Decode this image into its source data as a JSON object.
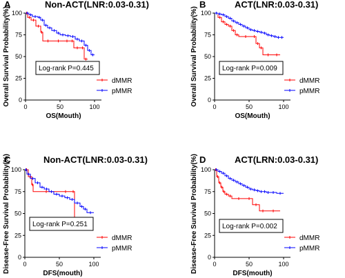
{
  "chart_data": [
    {
      "type": "line",
      "panel": "A",
      "title": "Non-ACT(LNR:0.03-0.31)",
      "xlabel": "OS(Mouth)",
      "ylabel": "Overall Survival Probability(%)",
      "xlim": [
        0,
        110
      ],
      "ylim": [
        0,
        100
      ],
      "xticks": [
        0,
        50,
        100
      ],
      "yticks": [
        0,
        25,
        50,
        75,
        100
      ],
      "annotation": "Log-rank P=0.445",
      "legend_position": "bottom-right",
      "series": [
        {
          "name": "dMMR",
          "color": "#ff0000",
          "x": [
            0,
            3,
            8,
            15,
            22,
            25,
            40,
            55,
            65,
            70,
            80,
            85,
            90
          ],
          "y": [
            100,
            95,
            92,
            85,
            78,
            68,
            68,
            68,
            68,
            60,
            60,
            47,
            47
          ]
        },
        {
          "name": "pMMR",
          "color": "#0000ff",
          "x": [
            0,
            5,
            10,
            18,
            22,
            27,
            32,
            38,
            45,
            50,
            58,
            65,
            72,
            78,
            85,
            90,
            95,
            100
          ],
          "y": [
            100,
            98,
            96,
            95,
            92,
            86,
            83,
            80,
            77,
            75,
            74,
            73,
            70,
            68,
            63,
            57,
            52,
            52
          ]
        }
      ]
    },
    {
      "type": "line",
      "panel": "B",
      "title": "ACT(LNR:0.03-0.31)",
      "xlabel": "OS(Mouth)",
      "ylabel": "Overall Survival Probability(%)",
      "xlim": [
        0,
        110
      ],
      "ylim": [
        0,
        100
      ],
      "xticks": [
        0,
        50,
        100
      ],
      "yticks": [
        0,
        25,
        50,
        75,
        100
      ],
      "annotation": "Log-rank P=0.009",
      "legend_position": "bottom-right",
      "series": [
        {
          "name": "dMMR",
          "color": "#ff0000",
          "x": [
            0,
            5,
            10,
            15,
            20,
            25,
            30,
            35,
            55,
            60,
            65,
            70,
            85,
            95
          ],
          "y": [
            100,
            95,
            90,
            87,
            85,
            80,
            75,
            73,
            73,
            65,
            60,
            52,
            52,
            52
          ]
        },
        {
          "name": "pMMR",
          "color": "#0000ff",
          "x": [
            0,
            5,
            10,
            15,
            20,
            25,
            30,
            35,
            40,
            45,
            50,
            55,
            60,
            65,
            70,
            75,
            80,
            85,
            90,
            95,
            100
          ],
          "y": [
            100,
            99,
            98,
            96,
            94,
            91,
            89,
            87,
            85,
            83,
            81,
            80,
            79,
            78,
            77,
            75,
            74,
            73,
            72,
            72,
            72
          ]
        }
      ]
    },
    {
      "type": "line",
      "panel": "C",
      "title": "Non-ACT(LNR:0.03-0.31)",
      "xlabel": "DFS(mouth)",
      "ylabel": "Disease-Free Survival Probability(%)",
      "xlim": [
        0,
        110
      ],
      "ylim": [
        0,
        100
      ],
      "xticks": [
        0,
        50,
        100
      ],
      "yticks": [
        0,
        25,
        50,
        75,
        100
      ],
      "annotation": "Log-rank P=0.251",
      "legend_position": "bottom-right",
      "series": [
        {
          "name": "dMMR",
          "color": "#ff0000",
          "x": [
            0,
            5,
            10,
            12,
            50,
            68,
            72,
            78
          ],
          "y": [
            100,
            92,
            83,
            75,
            75,
            75,
            37,
            37
          ]
        },
        {
          "name": "pMMR",
          "color": "#0000ff",
          "x": [
            0,
            3,
            8,
            15,
            22,
            28,
            35,
            42,
            50,
            58,
            65,
            72,
            80,
            85,
            90,
            100
          ],
          "y": [
            100,
            95,
            90,
            85,
            80,
            78,
            75,
            72,
            70,
            68,
            66,
            62,
            58,
            55,
            51,
            51
          ]
        }
      ]
    },
    {
      "type": "line",
      "panel": "D",
      "title": "ACT(LRN:0.03-0.31)",
      "xlabel": "DFS(mouth)",
      "ylabel": "Disease-Free Survival Probability(%)",
      "xlim": [
        0,
        110
      ],
      "ylim": [
        0,
        100
      ],
      "xticks": [
        0,
        50,
        100
      ],
      "yticks": [
        0,
        25,
        50,
        75,
        100
      ],
      "annotation": "Log-rank P=0.002",
      "legend_position": "bottom-right",
      "series": [
        {
          "name": "dMMR",
          "color": "#ff0000",
          "x": [
            0,
            3,
            6,
            9,
            12,
            15,
            20,
            25,
            45,
            55,
            65,
            75,
            95
          ],
          "y": [
            100,
            92,
            85,
            80,
            75,
            72,
            70,
            67,
            67,
            60,
            53,
            53,
            53
          ]
        },
        {
          "name": "pMMR",
          "color": "#0000ff",
          "x": [
            0,
            5,
            10,
            15,
            20,
            25,
            30,
            35,
            40,
            45,
            50,
            55,
            60,
            65,
            70,
            75,
            80,
            90,
            100
          ],
          "y": [
            100,
            98,
            96,
            93,
            90,
            88,
            86,
            84,
            82,
            80,
            78,
            77,
            76,
            75,
            75,
            74,
            74,
            73,
            73
          ]
        }
      ]
    }
  ]
}
